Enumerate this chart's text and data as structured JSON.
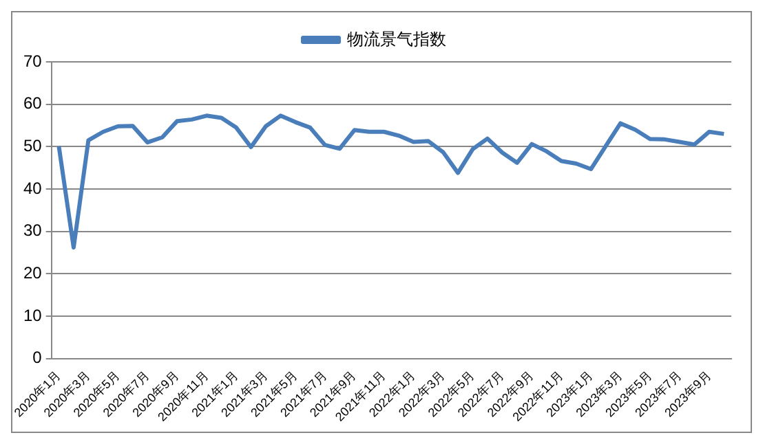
{
  "chart_data": {
    "type": "line",
    "categories": [
      "2020年1月",
      null,
      "2020年3月",
      null,
      "2020年5月",
      null,
      "2020年7月",
      null,
      "2020年9月",
      null,
      "2020年11月",
      null,
      "2021年1月",
      null,
      "2021年3月",
      null,
      "2021年5月",
      null,
      "2021年7月",
      null,
      "2021年9月",
      null,
      "2021年11月",
      null,
      "2022年1月",
      null,
      "2022年3月",
      null,
      "2022年5月",
      null,
      "2022年7月",
      null,
      "2022年9月",
      null,
      "2022年11月",
      null,
      "2023年1月",
      null,
      "2023年3月",
      null,
      "2023年5月",
      null,
      "2023年7月",
      null,
      "2023年9月",
      null
    ],
    "series": [
      {
        "name": "物流景气指数",
        "color": "#4a7ebb",
        "values": [
          50.1,
          26.2,
          51.5,
          53.5,
          54.8,
          54.9,
          51.0,
          52.2,
          56.0,
          56.4,
          57.3,
          56.8,
          54.5,
          49.9,
          54.8,
          57.3,
          55.8,
          54.5,
          50.4,
          49.5,
          53.9,
          53.5,
          53.5,
          52.6,
          51.1,
          51.3,
          48.7,
          43.8,
          49.4,
          51.9,
          48.6,
          46.2,
          50.6,
          48.9,
          46.6,
          46.0,
          44.7,
          50.1,
          55.5,
          54.0,
          51.8,
          51.7,
          51.1,
          50.5,
          53.5,
          53.0
        ]
      }
    ],
    "ylim": [
      0,
      70
    ],
    "yticks": [
      0,
      10,
      20,
      30,
      40,
      50,
      60,
      70
    ],
    "grid": "y",
    "legend": "top",
    "marker": "none",
    "line_style": "solid"
  }
}
